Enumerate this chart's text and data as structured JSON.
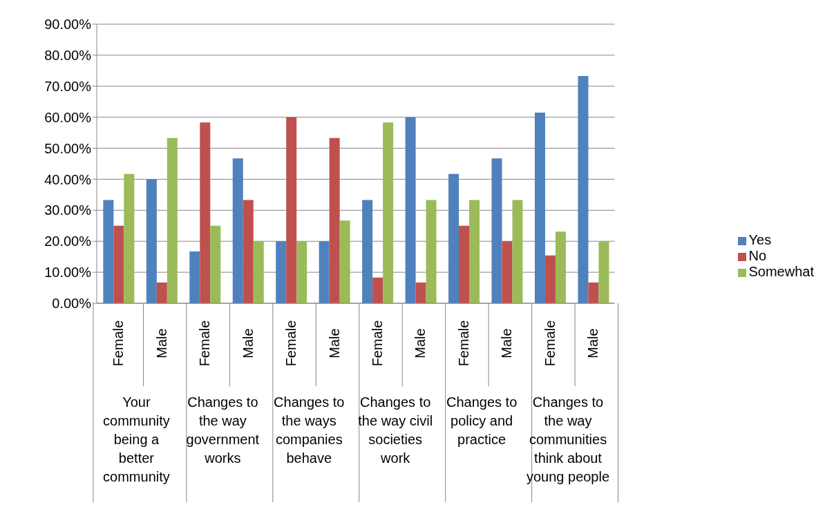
{
  "chart_data": {
    "type": "bar",
    "categories": [
      "Female",
      "Male",
      "Female",
      "Male",
      "Female",
      "Male",
      "Female",
      "Male",
      "Female",
      "Male",
      "Female",
      "Male"
    ],
    "annotations": [
      "Your community being a better community",
      "Changes to the way government works",
      "Changes to the ways companies behave",
      "Changes to the way civil societies work",
      "Changes to policy and practice",
      "Changes to the way communities think about young people"
    ],
    "series": [
      {
        "name": "Yes",
        "color": "#4f81bd",
        "values": [
          33.3,
          40,
          16.7,
          46.7,
          20,
          20,
          33.3,
          60,
          41.7,
          46.7,
          61.5,
          73.3
        ]
      },
      {
        "name": "No",
        "color": "#c0504d",
        "values": [
          25,
          6.7,
          58.3,
          33.3,
          60,
          53.3,
          8.3,
          6.7,
          25,
          20,
          15.4,
          6.7
        ]
      },
      {
        "name": "Somewhat",
        "color": "#9bbb59",
        "values": [
          41.7,
          53.3,
          25,
          20,
          20,
          26.7,
          58.3,
          33.3,
          33.3,
          33.3,
          23.1,
          20
        ]
      }
    ],
    "ylim": [
      0,
      90
    ],
    "yticks": [
      {
        "value": 0,
        "label": "0.00%"
      },
      {
        "value": 10,
        "label": "10.00%"
      },
      {
        "value": 20,
        "label": "20.00%"
      },
      {
        "value": 30,
        "label": "30.00%"
      },
      {
        "value": 40,
        "label": "40.00%"
      },
      {
        "value": 50,
        "label": "50.00%"
      },
      {
        "value": 60,
        "label": "60.00%"
      },
      {
        "value": 70,
        "label": "70.00%"
      },
      {
        "value": 80,
        "label": "80.00%"
      },
      {
        "value": 90,
        "label": "90.00%"
      }
    ],
    "grid": "y",
    "legend": "right"
  }
}
